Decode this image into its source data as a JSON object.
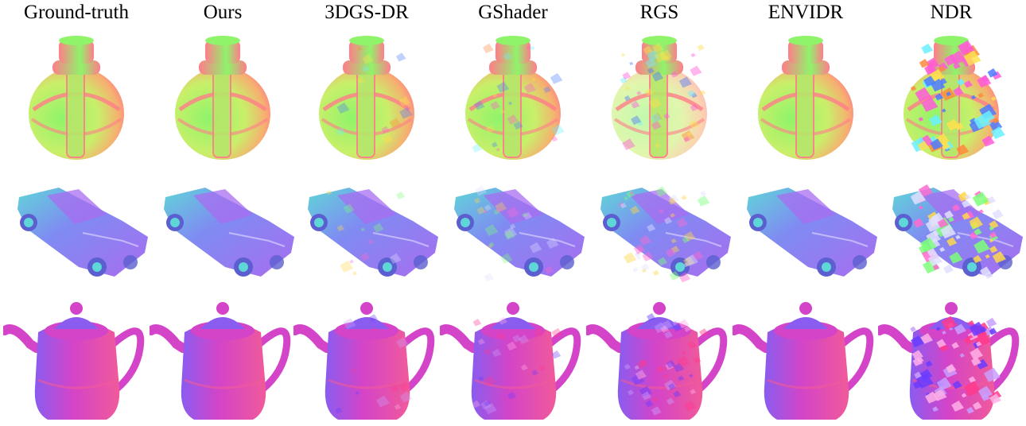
{
  "columns": [
    {
      "label": "Ground-truth",
      "quality": "clean"
    },
    {
      "label": "Ours",
      "quality": "clean"
    },
    {
      "label": "3DGS-DR",
      "quality": "slight"
    },
    {
      "label": "GShader",
      "quality": "artifact"
    },
    {
      "label": "RGS",
      "quality": "heavy"
    },
    {
      "label": "ENVIDR",
      "quality": "clean"
    },
    {
      "label": "NDR",
      "quality": "broken"
    }
  ],
  "rows": [
    {
      "object": "potion-bottle"
    },
    {
      "object": "car"
    },
    {
      "object": "teapot"
    }
  ],
  "colors": {
    "bottle_green": "#8ff46a",
    "bottle_pink": "#ff7d8a",
    "bottle_orange": "#f6b070",
    "car_blue": "#7f8cf2",
    "car_purple": "#a86cf0",
    "car_cyan": "#5fd6d8",
    "teapot_magenta": "#d444c8",
    "teapot_purple": "#8a5cf0",
    "teapot_pink": "#f05a9a"
  }
}
